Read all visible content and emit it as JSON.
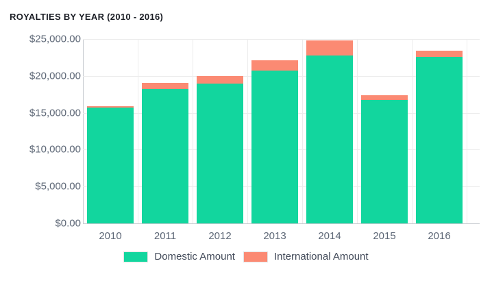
{
  "title": "ROYALTIES BY YEAR (2010 - 2016)",
  "colors": {
    "domestic": "#12d69e",
    "international": "#fb8a73",
    "axis_line": "#c6cacf",
    "gridline": "#ececec",
    "axis_text": "#5d6776",
    "legend_text": "#424a59",
    "title_text": "#1a1d24"
  },
  "chart_data": {
    "type": "bar",
    "stacked": true,
    "title": "ROYALTIES BY YEAR (2010 - 2016)",
    "categories": [
      "2010",
      "2011",
      "2012",
      "2013",
      "2014",
      "2015",
      "2016"
    ],
    "series": [
      {
        "name": "Domestic Amount",
        "color": "#12d69e",
        "values": [
          15700,
          18250,
          18950,
          20750,
          22800,
          16700,
          22600
        ]
      },
      {
        "name": "International Amount",
        "color": "#fb8a73",
        "values": [
          150,
          800,
          1050,
          1400,
          2000,
          650,
          850
        ]
      }
    ],
    "xlabel": "",
    "ylabel": "",
    "ylim": [
      0,
      25000
    ],
    "y_ticks": [
      {
        "value": 0,
        "label": "$0.00"
      },
      {
        "value": 5000,
        "label": "$5,000.00"
      },
      {
        "value": 10000,
        "label": "$10,000.00"
      },
      {
        "value": 15000,
        "label": "$15,000.00"
      },
      {
        "value": 20000,
        "label": "$20,000.00"
      },
      {
        "value": 25000,
        "label": "$25,000.00"
      }
    ],
    "grid": true,
    "legend_position": "bottom"
  }
}
